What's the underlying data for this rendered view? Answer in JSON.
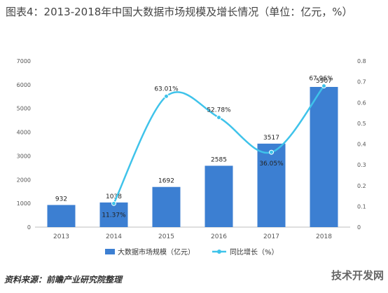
{
  "title": "图表4：2013-2018年中国大数据市场规模及增长情况（单位：亿元，%）",
  "source": "资料来源：前瞻产业研究院整理",
  "brand": "技术开发网",
  "colors": {
    "bar": "#3c7fd2",
    "line": "#3fc3ea",
    "grid": "#d9d9d9",
    "axis_text": "#555555"
  },
  "chart_data": {
    "type": "bar",
    "categories": [
      "2013",
      "2014",
      "2015",
      "2016",
      "2017",
      "2018"
    ],
    "series": [
      {
        "name": "大数据市场规模（亿元）",
        "type": "bar",
        "axis": "left",
        "values": [
          932,
          1038,
          1692,
          2585,
          3517,
          5907
        ],
        "labels": [
          "932",
          "1038",
          "1692",
          "2585",
          "3517",
          "5907"
        ]
      },
      {
        "name": "同比增长（%）",
        "type": "line",
        "axis": "right",
        "values": [
          null,
          0.1137,
          0.6301,
          0.5278,
          0.3605,
          0.6796
        ],
        "labels": [
          "",
          "11.37%",
          "63.01%",
          "52.78%",
          "36.05%",
          "67.96%"
        ]
      }
    ],
    "yleft": {
      "lim": [
        0,
        7000
      ],
      "ticks": [
        "0",
        "1000",
        "2000",
        "3000",
        "4000",
        "5000",
        "6000",
        "7000"
      ]
    },
    "yright": {
      "lim": [
        0,
        0.8
      ],
      "ticks": [
        "0",
        "0.1",
        "0.2",
        "0.3",
        "0.4",
        "0.5",
        "0.6",
        "0.7",
        "0.8"
      ]
    },
    "grid": false,
    "legend": "bottom"
  }
}
